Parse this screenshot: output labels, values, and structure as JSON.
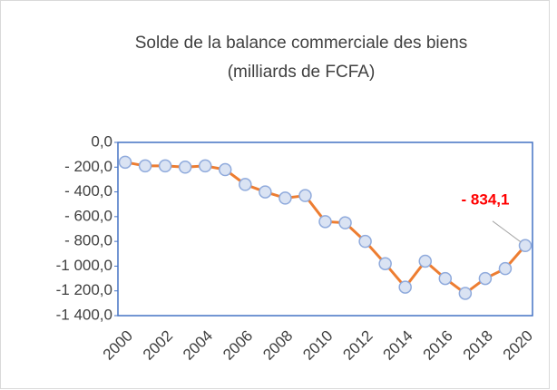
{
  "chart_data": {
    "type": "line",
    "title": "Solde de la balance commerciale des biens",
    "subtitle": "(milliards de FCFA)",
    "categories": [
      "2000",
      null,
      "2002",
      null,
      "2004",
      null,
      "2006",
      null,
      "2008",
      null,
      "2010",
      null,
      "2012",
      null,
      "2014",
      null,
      "2016",
      null,
      "2018",
      null,
      "2020"
    ],
    "series": [
      {
        "name": "Solde",
        "color": "#ed7d31",
        "values": [
          -160,
          -190,
          -190,
          -200,
          -190,
          -220,
          -340,
          -400,
          -450,
          -430,
          -640,
          -650,
          -800,
          -980,
          -1170,
          -960,
          -1100,
          -1220,
          -1100,
          -1020,
          -834.1
        ]
      }
    ],
    "value_labels": [
      null,
      null,
      null,
      null,
      null,
      null,
      null,
      null,
      null,
      null,
      null,
      null,
      null,
      null,
      null,
      null,
      null,
      null,
      null,
      null,
      "- 834,1"
    ],
    "ylim": [
      -1400,
      0
    ],
    "yticks": [
      {
        "value": 0,
        "label": "0,0"
      },
      {
        "value": -200,
        "label": "- 200,0"
      },
      {
        "value": -400,
        "label": "- 400,0"
      },
      {
        "value": -600,
        "label": "- 600,0"
      },
      {
        "value": -800,
        "label": "- 800,0"
      },
      {
        "value": -1000,
        "label": "-1 000,0"
      },
      {
        "value": -1200,
        "label": "-1 200,0"
      },
      {
        "value": -1400,
        "label": "-1 400,0"
      }
    ],
    "marker_fill": "#dae3f3",
    "marker_edge": "#8faadc",
    "frame_color": "#4472c4",
    "label_color": "#ff0000"
  }
}
